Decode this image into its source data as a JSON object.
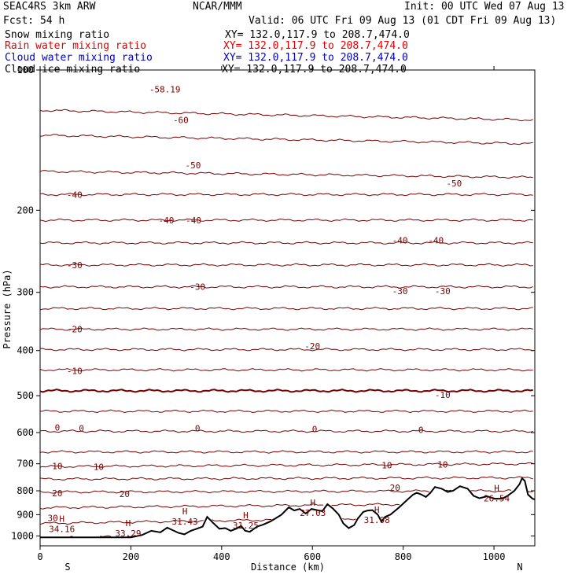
{
  "header": {
    "model": "SEAC4RS  3km ARW",
    "org": "NCAR/MMM",
    "init": "Init: 00 UTC Wed 07 Aug 13",
    "fcst": "Fcst:   54 h",
    "valid": "Valid: 06 UTC Fri 09 Aug 13 (01 CDT Fri 09 Aug 13)"
  },
  "fields": [
    {
      "name": "Snow mixing ratio",
      "xy": "XY= 132.0,117.9 to 208.7,474.0",
      "color": "#000000"
    },
    {
      "name": "Rain water mixing ratio",
      "xy": "XY= 132.0,117.9 to 208.7,474.0",
      "color": "#e00000"
    },
    {
      "name": "Cloud water mixing ratio",
      "xy": "XY= 132.0,117.9 to 208.7,474.0",
      "color": "#0000c8"
    },
    {
      "name": "Cloud ice mixing ratio",
      "xy": "XY= 132.0,117.9 to 208.7,474.0",
      "color": "#000000"
    }
  ],
  "axes": {
    "ylabel": "Pressure (hPa)",
    "xlabel": "Distance (km)",
    "left_end": "S",
    "right_end": "N"
  },
  "chart_data": {
    "type": "line",
    "x_range": [
      0,
      1090
    ],
    "y_range_hPa": [
      1050,
      100
    ],
    "y_log": true,
    "x_ticks": [
      {
        "v": 0,
        "label": "0"
      },
      {
        "v": 200,
        "label": "200"
      },
      {
        "v": 400,
        "label": "400"
      },
      {
        "v": 600,
        "label": "600"
      },
      {
        "v": 800,
        "label": "800"
      },
      {
        "v": 1000,
        "label": "1000"
      }
    ],
    "y_ticks": [
      {
        "v": 100,
        "label": "100"
      },
      {
        "v": 200,
        "label": "200"
      },
      {
        "v": 300,
        "label": "300"
      },
      {
        "v": 400,
        "label": "400"
      },
      {
        "v": 500,
        "label": "500"
      },
      {
        "v": 600,
        "label": "600"
      },
      {
        "v": 700,
        "label": "700"
      },
      {
        "v": 800,
        "label": "800"
      },
      {
        "v": 900,
        "label": "900"
      },
      {
        "v": 1000,
        "label": "1000"
      }
    ],
    "temperature_isotherms_degC": [
      {
        "t": -60,
        "p_left": 122,
        "p_right": 128
      },
      {
        "t": -55,
        "p_left": 138,
        "p_right": 144
      },
      {
        "t": -50,
        "p_left": 165,
        "p_right": 170
      },
      {
        "t": -45,
        "p_left": 185,
        "p_right": 185
      },
      {
        "t": -40,
        "p_left": 210,
        "p_right": 210
      },
      {
        "t": -35,
        "p_left": 235,
        "p_right": 235
      },
      {
        "t": -30,
        "p_left": 262,
        "p_right": 262
      },
      {
        "t": -25,
        "p_left": 292,
        "p_right": 292
      },
      {
        "t": -20,
        "p_left": 325,
        "p_right": 325
      },
      {
        "t": -15,
        "p_left": 360,
        "p_right": 360
      },
      {
        "t": -10,
        "p_left": 398,
        "p_right": 398
      },
      {
        "t": -5,
        "p_left": 440,
        "p_right": 440
      },
      {
        "t": 0,
        "p_left": 488,
        "p_right": 488
      },
      {
        "t": 5,
        "p_left": 540,
        "p_right": 540
      },
      {
        "t": 10,
        "p_left": 596,
        "p_right": 596
      },
      {
        "t": 15,
        "p_left": 660,
        "p_right": 660
      },
      {
        "t": 20,
        "p_left": 710,
        "p_right": 700
      },
      {
        "t": 25,
        "p_left": 755,
        "p_right": 750
      },
      {
        "t": 30,
        "p_left": 805,
        "p_right": 800
      },
      {
        "t": 35,
        "p_left": 870,
        "p_right": 850
      },
      {
        "t": 40,
        "p_left": 940,
        "p_right": 905
      },
      {
        "t": 45,
        "p_left": 1010,
        "p_right": 970
      }
    ],
    "contour_labels": [
      {
        "text": "-58.19",
        "x": 275,
        "p": 110
      },
      {
        "text": "-60",
        "x": 310,
        "p": 128
      },
      {
        "text": "-50",
        "x": 337,
        "p": 160
      },
      {
        "text": "-50",
        "x": 912,
        "p": 175
      },
      {
        "text": "-40",
        "x": 76,
        "p": 185
      },
      {
        "text": "-40",
        "x": 278,
        "p": 210
      },
      {
        "text": "-40",
        "x": 338,
        "p": 210
      },
      {
        "text": "-40",
        "x": 793,
        "p": 232
      },
      {
        "text": "-40",
        "x": 872,
        "p": 232
      },
      {
        "text": "-30",
        "x": 76,
        "p": 262
      },
      {
        "text": "-30",
        "x": 347,
        "p": 292
      },
      {
        "text": "-30",
        "x": 793,
        "p": 298
      },
      {
        "text": "-30",
        "x": 887,
        "p": 298
      },
      {
        "text": "-20",
        "x": 76,
        "p": 360
      },
      {
        "text": "-20",
        "x": 600,
        "p": 391
      },
      {
        "text": "-10",
        "x": 76,
        "p": 442
      },
      {
        "text": "-10",
        "x": 887,
        "p": 498
      },
      {
        "text": "0",
        "x": 38,
        "p": 585
      },
      {
        "text": "0",
        "x": 91,
        "p": 587
      },
      {
        "text": "0",
        "x": 347,
        "p": 587
      },
      {
        "text": "0",
        "x": 605,
        "p": 590
      },
      {
        "text": "0",
        "x": 839,
        "p": 592
      },
      {
        "text": "10",
        "x": 38,
        "p": 708
      },
      {
        "text": "10",
        "x": 129,
        "p": 710
      },
      {
        "text": "10",
        "x": 764,
        "p": 705
      },
      {
        "text": "10",
        "x": 887,
        "p": 702
      },
      {
        "text": "20",
        "x": 38,
        "p": 810
      },
      {
        "text": "20",
        "x": 186,
        "p": 813
      },
      {
        "text": "20",
        "x": 782,
        "p": 787
      },
      {
        "text": "30",
        "x": 28,
        "p": 915
      }
    ],
    "highs": [
      {
        "label": "34.16",
        "x": 48,
        "p": 963
      },
      {
        "label": "33.29",
        "x": 194,
        "p": 983
      },
      {
        "label": "31.43",
        "x": 319,
        "p": 928
      },
      {
        "label": "31.25",
        "x": 453,
        "p": 946
      },
      {
        "label": "27.03",
        "x": 601,
        "p": 888
      },
      {
        "label": "31.08",
        "x": 742,
        "p": 920
      },
      {
        "label": "26.54",
        "x": 1006,
        "p": 827
      }
    ],
    "terrain_hPa": [
      [
        0,
        1007
      ],
      [
        150,
        1007
      ],
      [
        200,
        1007
      ],
      [
        225,
        995
      ],
      [
        245,
        975
      ],
      [
        265,
        982
      ],
      [
        280,
        960
      ],
      [
        295,
        975
      ],
      [
        305,
        985
      ],
      [
        318,
        992
      ],
      [
        332,
        975
      ],
      [
        345,
        965
      ],
      [
        358,
        955
      ],
      [
        368,
        910
      ],
      [
        380,
        935
      ],
      [
        395,
        965
      ],
      [
        408,
        962
      ],
      [
        420,
        975
      ],
      [
        432,
        965
      ],
      [
        443,
        952
      ],
      [
        452,
        975
      ],
      [
        462,
        980
      ],
      [
        478,
        955
      ],
      [
        492,
        945
      ],
      [
        508,
        930
      ],
      [
        520,
        915
      ],
      [
        532,
        900
      ],
      [
        548,
        868
      ],
      [
        560,
        882
      ],
      [
        572,
        875
      ],
      [
        585,
        895
      ],
      [
        598,
        875
      ],
      [
        610,
        880
      ],
      [
        622,
        885
      ],
      [
        633,
        855
      ],
      [
        645,
        873
      ],
      [
        658,
        900
      ],
      [
        668,
        940
      ],
      [
        680,
        962
      ],
      [
        692,
        948
      ],
      [
        700,
        918
      ],
      [
        712,
        888
      ],
      [
        722,
        882
      ],
      [
        732,
        880
      ],
      [
        744,
        900
      ],
      [
        752,
        932
      ],
      [
        760,
        910
      ],
      [
        772,
        900
      ],
      [
        790,
        870
      ],
      [
        808,
        838
      ],
      [
        822,
        815
      ],
      [
        830,
        808
      ],
      [
        840,
        815
      ],
      [
        850,
        825
      ],
      [
        860,
        808
      ],
      [
        870,
        785
      ],
      [
        885,
        792
      ],
      [
        898,
        805
      ],
      [
        910,
        800
      ],
      [
        925,
        782
      ],
      [
        942,
        792
      ],
      [
        955,
        820
      ],
      [
        968,
        830
      ],
      [
        985,
        822
      ],
      [
        1002,
        832
      ],
      [
        1018,
        832
      ],
      [
        1030,
        820
      ],
      [
        1045,
        800
      ],
      [
        1056,
        775
      ],
      [
        1062,
        752
      ],
      [
        1068,
        762
      ],
      [
        1075,
        815
      ],
      [
        1085,
        832
      ],
      [
        1090,
        835
      ]
    ]
  }
}
